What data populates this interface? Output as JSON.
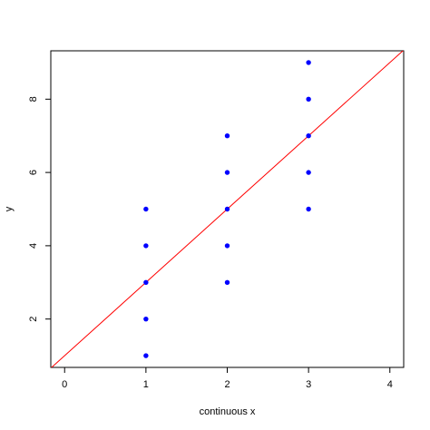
{
  "chart_data": {
    "type": "scatter",
    "xlabel": "continuous x",
    "ylabel": "y",
    "xlim": [
      -0.17,
      4.17
    ],
    "ylim": [
      0.68,
      9.32
    ],
    "x_ticks": [
      0,
      1,
      2,
      3,
      4
    ],
    "y_ticks": [
      2,
      4,
      6,
      8
    ],
    "x_tick_labels": [
      "0",
      "1",
      "2",
      "3",
      "4"
    ],
    "y_tick_labels": [
      "2",
      "4",
      "6",
      "8"
    ],
    "grid": false,
    "legend": "none",
    "series": [
      {
        "kind": "points",
        "color": "#0000ff",
        "x": [
          1,
          1,
          1,
          1,
          1,
          2,
          2,
          2,
          2,
          2,
          3,
          3,
          3,
          3,
          3
        ],
        "y": [
          1,
          2,
          3,
          4,
          5,
          3,
          4,
          5,
          6,
          7,
          5,
          6,
          7,
          8,
          9
        ]
      },
      {
        "kind": "line",
        "color": "#ff0000",
        "intercept": 1,
        "slope": 2
      }
    ]
  }
}
